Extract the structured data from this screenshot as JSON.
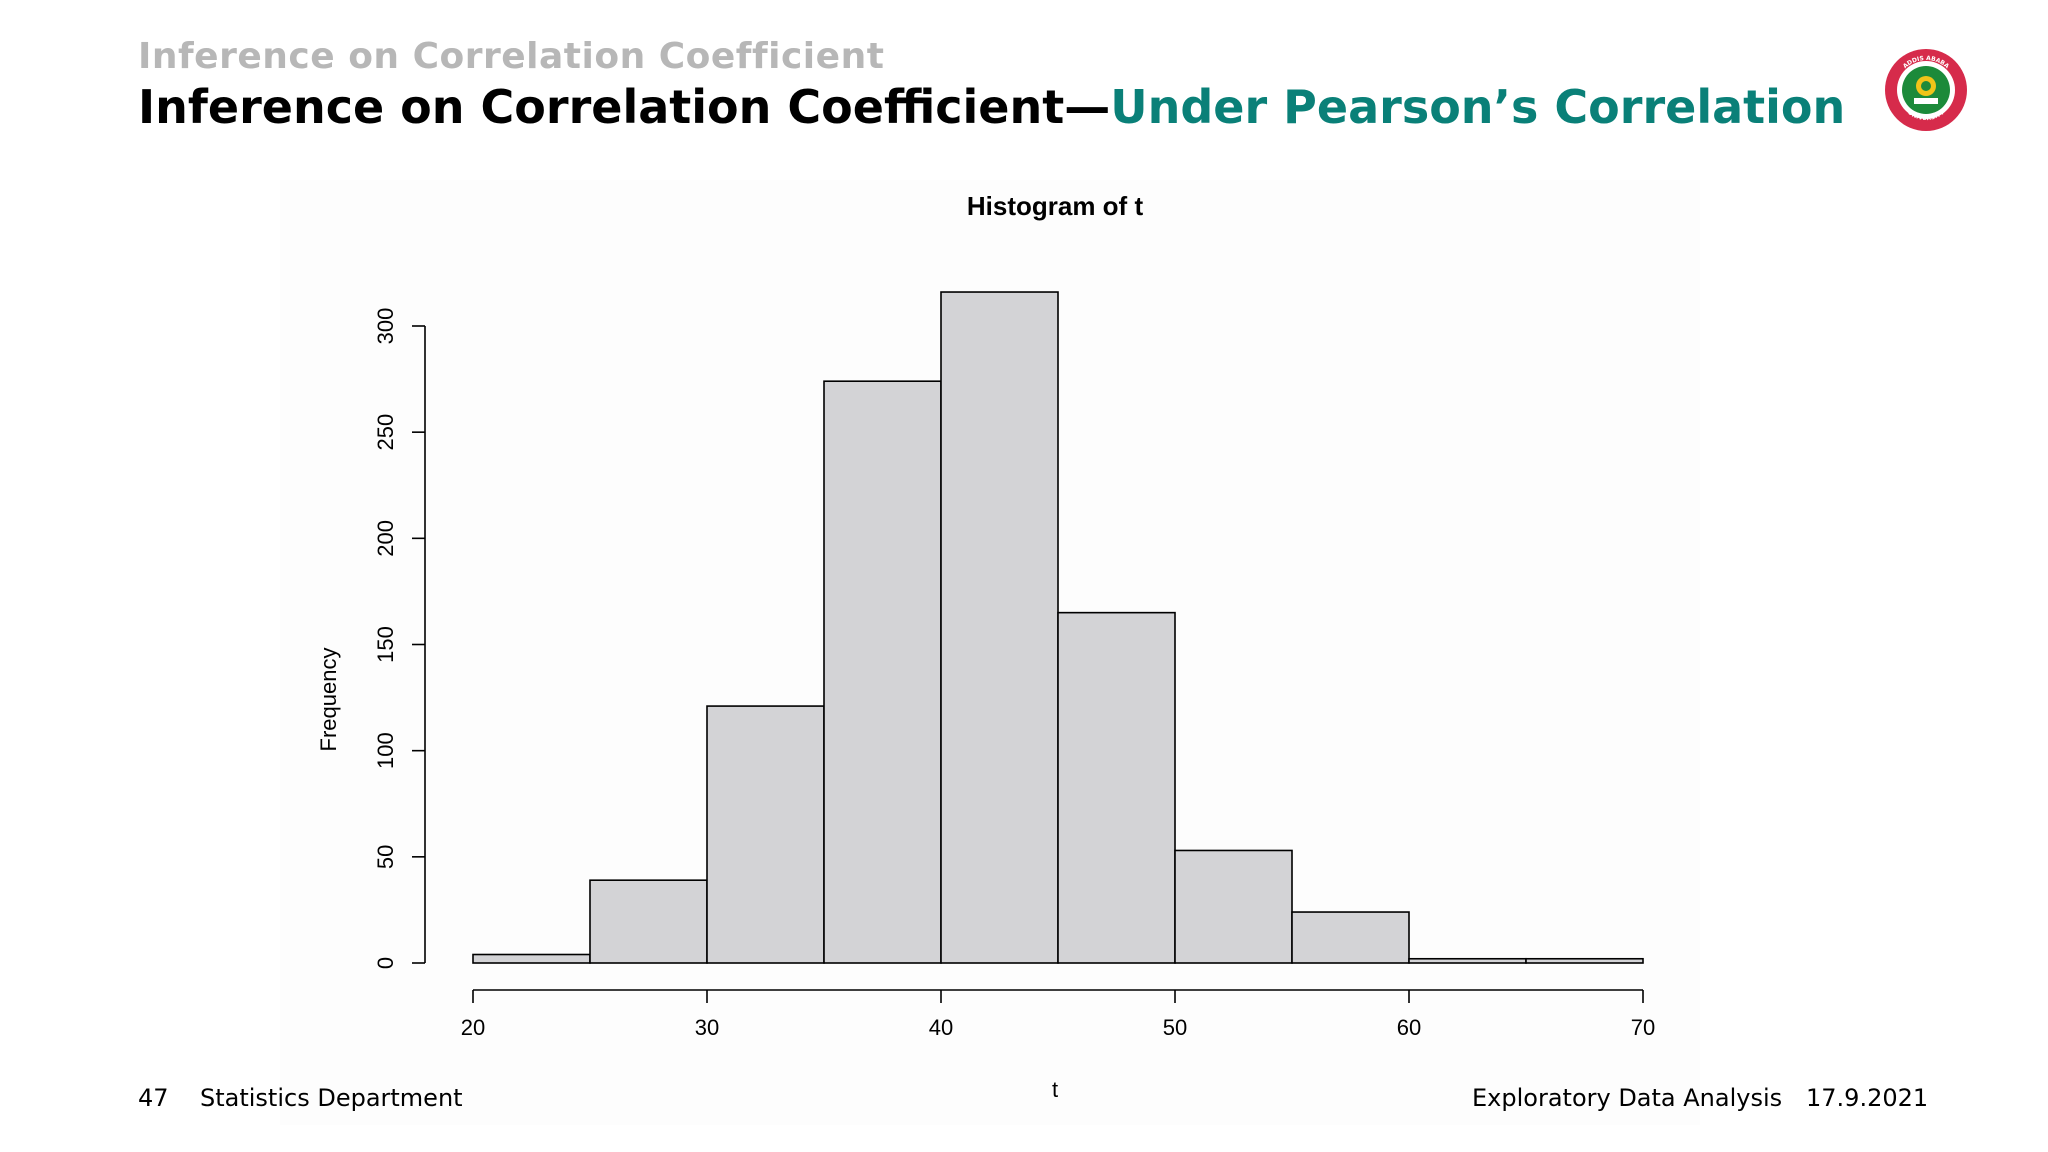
{
  "slide": {
    "section_title": "Inference on Correlation Coefficient",
    "title_main": "Inference on Correlation Coefficient—",
    "title_sub": "Under Pearson’s Correlation",
    "title_main_color": "#000000",
    "title_sub_color": "#0a8078",
    "section_title_color": "#b7b7b7"
  },
  "logo": {
    "icon": "university-seal-icon",
    "text_top": "ADDIS ABABA",
    "text_bottom": "UNIVERSITY"
  },
  "footer": {
    "page_number": "47",
    "department": "Statistics Department",
    "course": "Exploratory Data Analysis",
    "date": "17.9.2021"
  },
  "chart_data": {
    "type": "bar",
    "title": "Histogram of t",
    "xlabel": "t",
    "ylabel": "Frequency",
    "bins": [
      [
        20,
        25
      ],
      [
        25,
        30
      ],
      [
        30,
        35
      ],
      [
        35,
        40
      ],
      [
        40,
        45
      ],
      [
        45,
        50
      ],
      [
        50,
        55
      ],
      [
        55,
        60
      ],
      [
        60,
        65
      ],
      [
        65,
        70
      ]
    ],
    "values": [
      4,
      39,
      121,
      274,
      316,
      165,
      53,
      24,
      2,
      2
    ],
    "xlim": [
      20,
      70
    ],
    "ylim": [
      0,
      300
    ],
    "x_ticks": [
      "20",
      "30",
      "40",
      "50",
      "60",
      "70"
    ],
    "y_ticks": [
      "0",
      "50",
      "100",
      "150",
      "200",
      "250",
      "300"
    ],
    "bar_color": "#d3d3d6",
    "edge_color": "#000000",
    "grid": false
  }
}
